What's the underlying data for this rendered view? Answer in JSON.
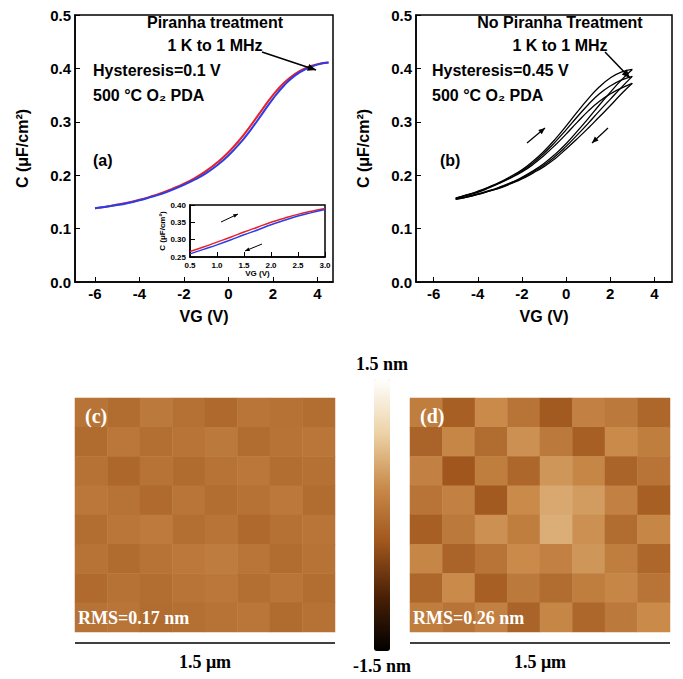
{
  "chart_data": [
    {
      "type": "line",
      "title": "(a)",
      "annotations": [
        "Piranha treatment",
        "1 K to 1 MHz",
        "Hysteresis=0.1 V",
        "500 °C O₂ PDA"
      ],
      "xlabel": "VG (V)",
      "ylabel": "C (μF/cm²)",
      "xlim": [
        -6.9,
        4.7
      ],
      "xticks": [
        -6,
        -4,
        -2,
        0,
        2,
        4
      ],
      "ylim": [
        0,
        0.5
      ],
      "yticks": [
        {
          "value": 0,
          "label": "0.0"
        },
        0.1,
        0.2,
        0.3,
        0.4,
        0.5
      ],
      "x": [
        -6,
        -5.5,
        -5,
        -4.5,
        -4,
        -3.5,
        -3,
        -2.5,
        -2,
        -1.5,
        -1,
        -0.5,
        0,
        0.5,
        1,
        1.5,
        2,
        2.5,
        3,
        3.5,
        4,
        4.5
      ],
      "series": [
        {
          "color": "#e8202a",
          "values": [
            0.138,
            0.141,
            0.145,
            0.149,
            0.154,
            0.16,
            0.167,
            0.175,
            0.184,
            0.195,
            0.208,
            0.224,
            0.243,
            0.266,
            0.293,
            0.322,
            0.35,
            0.373,
            0.39,
            0.401,
            0.408,
            0.411
          ]
        },
        {
          "color": "#2a3ee8",
          "values": [
            0.138,
            0.141,
            0.144,
            0.148,
            0.153,
            0.159,
            0.165,
            0.173,
            0.182,
            0.192,
            0.204,
            0.219,
            0.237,
            0.259,
            0.285,
            0.314,
            0.343,
            0.368,
            0.387,
            0.399,
            0.407,
            0.411
          ]
        }
      ]
    },
    {
      "type": "line",
      "xlabel": "VG (V)",
      "ylabel": "C (μF/cm²)",
      "xlim": [
        0.5,
        3.0
      ],
      "xticks": [
        0.5,
        {
          "value": 1,
          "label": "1.0"
        },
        1.5,
        {
          "value": 2,
          "label": "2.0"
        },
        2.5,
        {
          "value": 3,
          "label": "3.0"
        }
      ],
      "ylim": [
        0.25,
        0.4
      ],
      "yticks": [
        0.25,
        {
          "value": 0.3,
          "label": "0.30"
        },
        0.35,
        {
          "value": 0.4,
          "label": "0.40"
        }
      ],
      "x": [
        0.5,
        0.75,
        1.0,
        1.25,
        1.5,
        1.75,
        2.0,
        2.25,
        2.5,
        2.75,
        3.0
      ],
      "series": [
        {
          "color": "#e8202a",
          "values": [
            0.266,
            0.279,
            0.293,
            0.307,
            0.322,
            0.336,
            0.35,
            0.362,
            0.373,
            0.382,
            0.39
          ]
        },
        {
          "color": "#2a3ee8",
          "values": [
            0.259,
            0.272,
            0.285,
            0.299,
            0.314,
            0.328,
            0.343,
            0.356,
            0.368,
            0.378,
            0.387
          ]
        }
      ]
    },
    {
      "type": "line",
      "title": "(b)",
      "annotations": [
        "No Piranha Treatment",
        "1 K to 1 MHz",
        "Hysteresis=0.45 V",
        "500 °C O₂ PDA"
      ],
      "xlabel": "VG (V)",
      "ylabel": "C (μF/cm²)",
      "xlim": [
        -6.8,
        4.8
      ],
      "xticks": [
        -6,
        -4,
        -2,
        0,
        2,
        4
      ],
      "ylim": [
        0,
        0.5
      ],
      "yticks": [
        {
          "value": 0,
          "label": "0.0"
        },
        0.1,
        0.2,
        0.3,
        0.4,
        0.5
      ],
      "x": [
        -5,
        -4.5,
        -4,
        -3.5,
        -3,
        -2.5,
        -2,
        -1.5,
        -1,
        -0.5,
        0,
        0.5,
        1,
        1.5,
        2,
        2.5,
        3
      ],
      "series": [
        {
          "color": "#000000",
          "values": [
            0.157,
            0.163,
            0.17,
            0.178,
            0.187,
            0.198,
            0.21,
            0.226,
            0.245,
            0.267,
            0.292,
            0.318,
            0.343,
            0.365,
            0.382,
            0.393,
            0.398
          ]
        },
        {
          "color": "#000000",
          "values": [
            0.155,
            0.16,
            0.165,
            0.171,
            0.178,
            0.186,
            0.196,
            0.208,
            0.222,
            0.239,
            0.259,
            0.282,
            0.306,
            0.331,
            0.355,
            0.378,
            0.398
          ]
        },
        {
          "color": "#000000",
          "values": [
            0.157,
            0.163,
            0.169,
            0.177,
            0.186,
            0.196,
            0.208,
            0.223,
            0.241,
            0.262,
            0.285,
            0.309,
            0.332,
            0.352,
            0.367,
            0.378,
            0.385
          ]
        },
        {
          "color": "#000000",
          "values": [
            0.155,
            0.159,
            0.164,
            0.17,
            0.177,
            0.185,
            0.195,
            0.206,
            0.219,
            0.235,
            0.254,
            0.275,
            0.297,
            0.32,
            0.342,
            0.364,
            0.385
          ]
        },
        {
          "color": "#000000",
          "values": [
            0.156,
            0.162,
            0.168,
            0.176,
            0.185,
            0.195,
            0.206,
            0.22,
            0.237,
            0.256,
            0.277,
            0.299,
            0.32,
            0.338,
            0.352,
            0.363,
            0.372
          ]
        },
        {
          "color": "#000000",
          "values": [
            0.155,
            0.159,
            0.164,
            0.17,
            0.176,
            0.184,
            0.193,
            0.204,
            0.216,
            0.231,
            0.249,
            0.268,
            0.288,
            0.309,
            0.33,
            0.352,
            0.372
          ]
        }
      ]
    },
    {
      "type": "heatmap",
      "title": "(c)",
      "annotations": [
        "RMS=0.17 nm"
      ],
      "xlabel": "1.5 μm",
      "zlim": [
        -1.5,
        1.5
      ],
      "zticks": [
        {
          "value": -1.5,
          "label": "-1.5 nm"
        },
        {
          "value": 1.5,
          "label": "1.5 nm"
        }
      ],
      "cells": [
        [
          0.05,
          -0.05,
          0.1,
          0.0,
          -0.08,
          0.06,
          0.02,
          -0.04
        ],
        [
          -0.06,
          0.08,
          -0.02,
          0.05,
          0.1,
          -0.05,
          0.04,
          0.07
        ],
        [
          0.02,
          -0.1,
          0.04,
          -0.06,
          0.03,
          0.08,
          -0.03,
          0.0
        ],
        [
          0.08,
          0.03,
          -0.07,
          0.06,
          -0.04,
          0.02,
          0.09,
          -0.05
        ],
        [
          -0.03,
          0.07,
          0.12,
          -0.02,
          0.05,
          -0.08,
          0.01,
          0.06
        ],
        [
          0.04,
          -0.06,
          0.03,
          0.09,
          0.14,
          0.06,
          -0.05,
          0.03
        ],
        [
          -0.07,
          0.02,
          -0.04,
          0.05,
          0.08,
          -0.02,
          0.06,
          -0.03
        ],
        [
          0.03,
          0.06,
          -0.05,
          -0.01,
          0.04,
          0.07,
          -0.06,
          0.02
        ]
      ]
    },
    {
      "type": "heatmap",
      "title": "(d)",
      "annotations": [
        "RMS=0.26 nm"
      ],
      "xlabel": "1.5 μm",
      "zlim": [
        -1.5,
        1.5
      ],
      "cells": [
        [
          0.15,
          -0.2,
          0.3,
          0.05,
          -0.25,
          0.2,
          0.1,
          -0.1
        ],
        [
          -0.15,
          0.25,
          -0.05,
          0.35,
          0.1,
          -0.2,
          0.3,
          0.15
        ],
        [
          0.2,
          -0.3,
          0.15,
          -0.1,
          0.4,
          0.25,
          -0.15,
          0.05
        ],
        [
          0.05,
          0.2,
          -0.25,
          0.3,
          0.55,
          0.45,
          0.2,
          -0.2
        ],
        [
          -0.2,
          0.1,
          0.35,
          0.15,
          0.6,
          0.35,
          -0.05,
          0.25
        ],
        [
          0.25,
          -0.15,
          0.05,
          0.3,
          0.2,
          0.4,
          0.15,
          -0.1
        ],
        [
          -0.1,
          0.3,
          -0.2,
          0.1,
          -0.05,
          0.15,
          0.25,
          0.05
        ],
        [
          0.15,
          0.05,
          0.2,
          -0.15,
          0.25,
          -0.1,
          0.1,
          0.3
        ]
      ]
    }
  ]
}
